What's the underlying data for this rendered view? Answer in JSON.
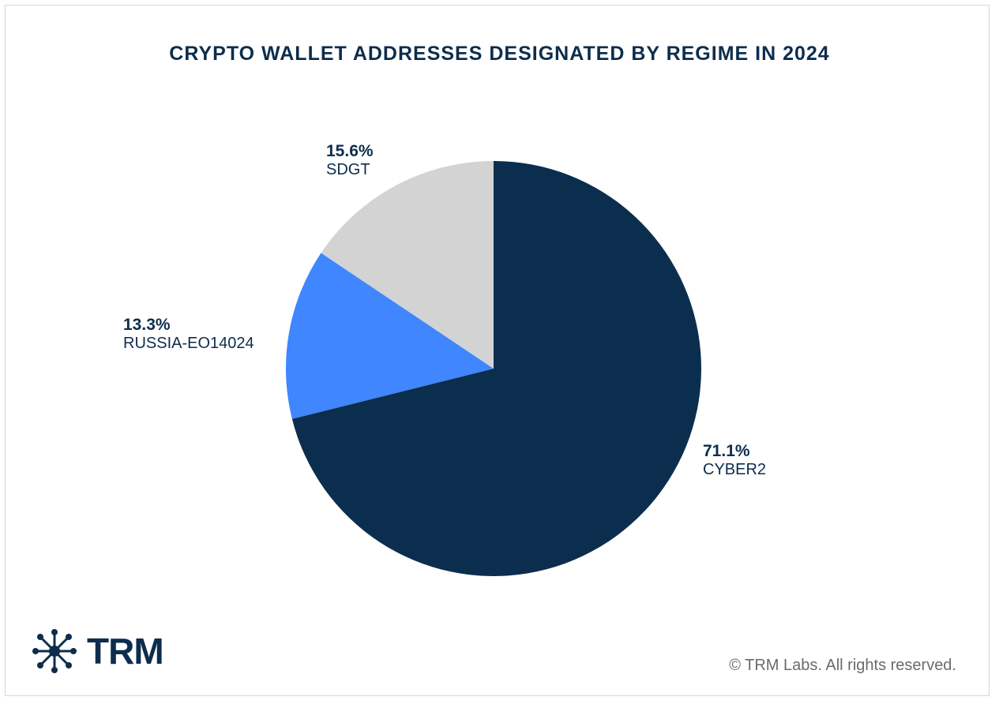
{
  "title": "CRYPTO WALLET ADDRESSES DESIGNATED BY REGIME IN 2024",
  "chart_data": {
    "type": "pie",
    "title": "CRYPTO WALLET ADDRESSES DESIGNATED BY REGIME IN 2024",
    "slices": [
      {
        "label": "CYBER2",
        "value": 71.1,
        "value_label": "71.1%",
        "color": "#0c2e4e"
      },
      {
        "label": "RUSSIA-EO14024",
        "value": 13.3,
        "value_label": "13.3%",
        "color": "#3f86ff"
      },
      {
        "label": "SDGT",
        "value": 15.6,
        "value_label": "15.6%",
        "color": "#d3d3d3"
      }
    ],
    "start": "12 o'clock",
    "direction": "clockwise"
  },
  "logo": {
    "text": "TRM",
    "icon": "network-node-icon"
  },
  "footer": {
    "copyright": "© TRM Labs. All rights reserved."
  }
}
